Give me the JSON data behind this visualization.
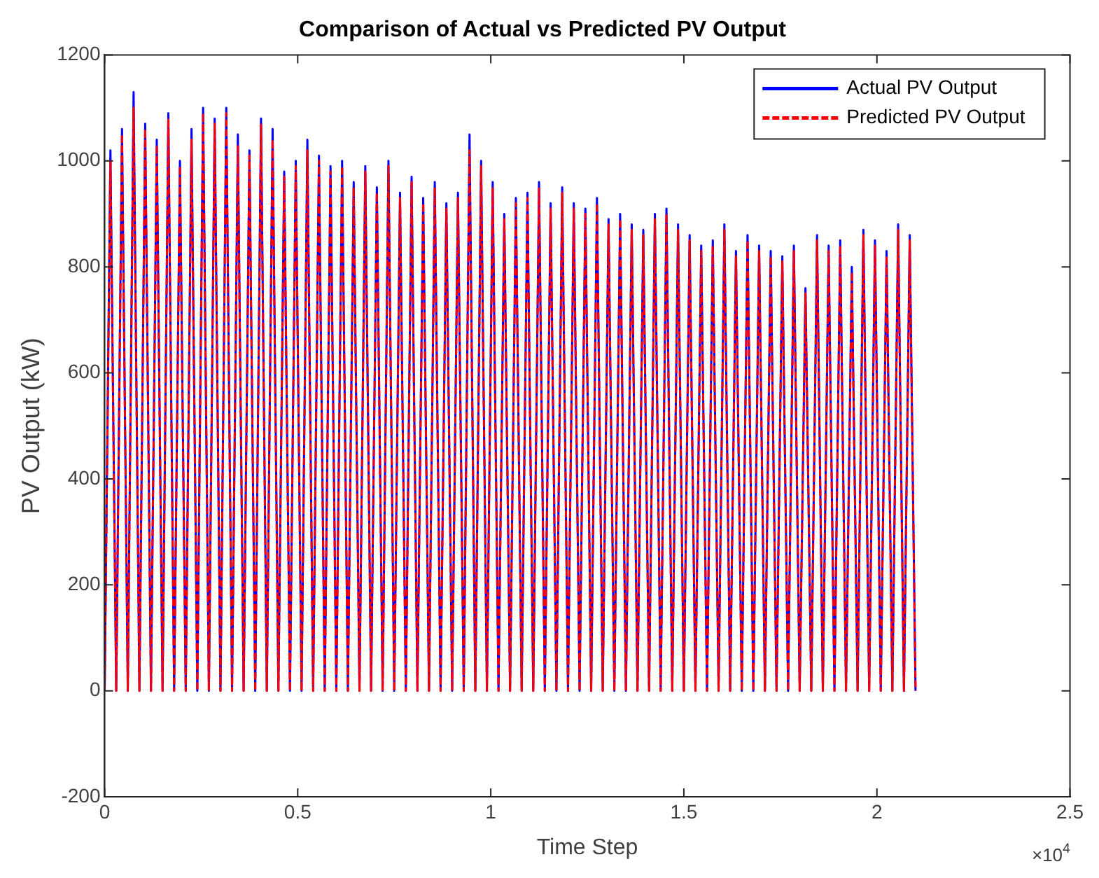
{
  "chart_data": {
    "type": "line",
    "title": "Comparison of Actual vs Predicted PV Output",
    "xlabel": "Time Step",
    "ylabel": "PV Output (kW)",
    "annotations": [
      "×10$^{4}$"
    ],
    "x": [
      0,
      0.015,
      0.03,
      0.045,
      0.06,
      0.075,
      0.09,
      0.105,
      0.12,
      0.135,
      0.15,
      0.165,
      0.18,
      0.195,
      0.21,
      0.225,
      0.24,
      0.255,
      0.27,
      0.285,
      0.3,
      0.315,
      0.33,
      0.345,
      0.36,
      0.375,
      0.39,
      0.405,
      0.42,
      0.435,
      0.45,
      0.465,
      0.48,
      0.495,
      0.51,
      0.525,
      0.54,
      0.555,
      0.57,
      0.585,
      0.6,
      0.615,
      0.63,
      0.645,
      0.66,
      0.675,
      0.69,
      0.705,
      0.72,
      0.735,
      0.75,
      0.765,
      0.78,
      0.795,
      0.81,
      0.825,
      0.84,
      0.855,
      0.87,
      0.885,
      0.9,
      0.915,
      0.93,
      0.945,
      0.96,
      0.975,
      0.99,
      1.005,
      1.02,
      1.035,
      1.05,
      1.065,
      1.08,
      1.095,
      1.11,
      1.125,
      1.14,
      1.155,
      1.17,
      1.185,
      1.2,
      1.215,
      1.23,
      1.245,
      1.26,
      1.275,
      1.29,
      1.305,
      1.32,
      1.335,
      1.35,
      1.365,
      1.38,
      1.395,
      1.41,
      1.425,
      1.44,
      1.455,
      1.47,
      1.485,
      1.5,
      1.515,
      1.53,
      1.545,
      1.56,
      1.575,
      1.59,
      1.605,
      1.62,
      1.635,
      1.65,
      1.665,
      1.68,
      1.695,
      1.71,
      1.725,
      1.74,
      1.755,
      1.77,
      1.785,
      1.8,
      1.815,
      1.83,
      1.845,
      1.86,
      1.875,
      1.89,
      1.905,
      1.92,
      1.935,
      1.95,
      1.965,
      1.98,
      1.995,
      2.01,
      2.025,
      2.04,
      2.055,
      2.07,
      2.085,
      2.1
    ],
    "series": [
      {
        "name": "Actual PV Output",
        "color": "#0000ff",
        "line_style": "solid",
        "values": [
          0,
          1020,
          0,
          1060,
          0,
          1130,
          0,
          1070,
          0,
          1040,
          0,
          1090,
          0,
          1000,
          0,
          1060,
          0,
          1100,
          0,
          1080,
          0,
          1100,
          0,
          1050,
          0,
          1020,
          0,
          1080,
          0,
          1060,
          0,
          980,
          0,
          1000,
          0,
          1040,
          0,
          1010,
          0,
          990,
          0,
          1000,
          0,
          960,
          0,
          990,
          0,
          950,
          0,
          1000,
          0,
          940,
          0,
          970,
          0,
          930,
          0,
          960,
          0,
          920,
          0,
          940,
          0,
          1050,
          0,
          1000,
          0,
          960,
          0,
          900,
          0,
          930,
          0,
          940,
          0,
          960,
          0,
          920,
          0,
          950,
          0,
          920,
          0,
          910,
          0,
          930,
          0,
          890,
          0,
          900,
          0,
          880,
          0,
          870,
          0,
          900,
          0,
          910,
          0,
          880,
          0,
          860,
          0,
          840,
          0,
          850,
          0,
          880,
          0,
          830,
          0,
          860,
          0,
          840,
          0,
          830,
          0,
          820,
          0,
          840,
          0,
          760,
          0,
          860,
          0,
          840,
          0,
          850,
          0,
          800,
          0,
          870,
          0,
          850,
          0,
          830,
          0,
          880,
          0,
          860,
          0
        ]
      },
      {
        "name": "Predicted PV Output",
        "color": "#ff0000",
        "line_style": "dashed",
        "values": [
          0,
          1000,
          0,
          1050,
          0,
          1100,
          0,
          1060,
          0,
          1030,
          0,
          1080,
          0,
          990,
          0,
          1040,
          0,
          1090,
          0,
          1070,
          0,
          1090,
          0,
          1030,
          0,
          1010,
          0,
          1070,
          0,
          1040,
          0,
          970,
          0,
          990,
          0,
          1020,
          0,
          1000,
          0,
          980,
          0,
          990,
          0,
          950,
          0,
          980,
          0,
          940,
          0,
          990,
          0,
          930,
          0,
          960,
          0,
          920,
          0,
          950,
          0,
          910,
          0,
          930,
          0,
          1020,
          0,
          990,
          0,
          950,
          0,
          890,
          0,
          920,
          0,
          930,
          0,
          950,
          0,
          910,
          0,
          940,
          0,
          910,
          0,
          900,
          0,
          920,
          0,
          880,
          0,
          890,
          0,
          870,
          0,
          860,
          0,
          890,
          0,
          900,
          0,
          870,
          0,
          850,
          0,
          830,
          0,
          840,
          0,
          870,
          0,
          820,
          0,
          850,
          0,
          830,
          0,
          820,
          0,
          810,
          0,
          830,
          0,
          750,
          0,
          850,
          0,
          830,
          0,
          840,
          0,
          790,
          0,
          860,
          0,
          840,
          0,
          820,
          0,
          870,
          0,
          850,
          0
        ]
      }
    ],
    "xlim": [
      0,
      2.5
    ],
    "xticks": [
      0,
      0.5,
      1,
      1.5,
      2,
      2.5
    ],
    "ylim": [
      -200,
      1200
    ],
    "yticks": [
      -200,
      0,
      200,
      400,
      600,
      800,
      1000,
      1200
    ],
    "grid": false,
    "legend": "top right",
    "marker": "none"
  }
}
